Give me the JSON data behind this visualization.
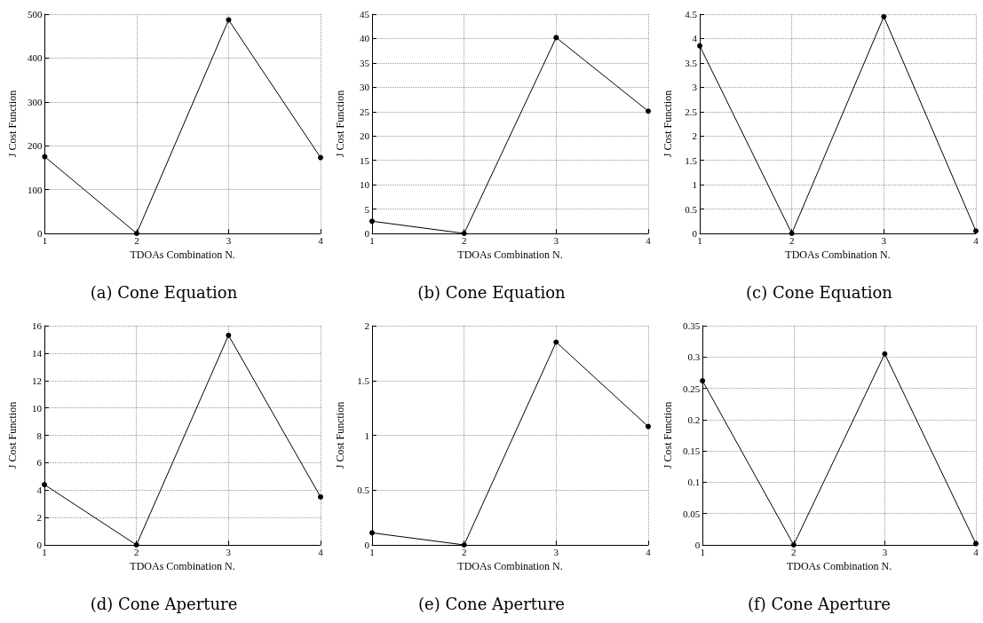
{
  "chart_data": [
    {
      "type": "line",
      "title": "(a) Cone Equation",
      "xlabel": "TDOAs Combination N.",
      "ylabel": "J Cost Function",
      "x": [
        1,
        2,
        3,
        4
      ],
      "series": [
        {
          "color": "#000000",
          "values": [
            175,
            0,
            487,
            173
          ]
        }
      ],
      "xlim": [
        1,
        4
      ],
      "xticks": [
        1,
        2,
        3,
        4
      ],
      "ylim": [
        0,
        500
      ],
      "yticks": [
        0,
        100,
        200,
        300,
        400,
        500
      ],
      "grid": true,
      "marker": "circle",
      "line_style": "solid"
    },
    {
      "type": "line",
      "title": "(b) Cone Equation",
      "xlabel": "TDOAs Combination N.",
      "ylabel": "J Cost Function",
      "x": [
        1,
        2,
        3,
        4
      ],
      "series": [
        {
          "color": "#000000",
          "values": [
            2.5,
            0,
            40.2,
            25.1
          ]
        }
      ],
      "xlim": [
        1,
        4
      ],
      "xticks": [
        1,
        2,
        3,
        4
      ],
      "ylim": [
        0,
        45
      ],
      "yticks": [
        0,
        5,
        10,
        15,
        20,
        25,
        30,
        35,
        40,
        45
      ],
      "grid": true,
      "marker": "circle",
      "line_style": "solid"
    },
    {
      "type": "line",
      "title": "(c) Cone Equation",
      "xlabel": "TDOAs Combination N.",
      "ylabel": "J Cost Function",
      "x": [
        1,
        2,
        3,
        4
      ],
      "series": [
        {
          "color": "#000000",
          "values": [
            3.85,
            0,
            4.45,
            0.05
          ]
        }
      ],
      "xlim": [
        1,
        4
      ],
      "xticks": [
        1,
        2,
        3,
        4
      ],
      "ylim": [
        0,
        4.5
      ],
      "yticks": [
        0,
        0.5,
        1,
        1.5,
        2,
        2.5,
        3,
        3.5,
        4,
        4.5
      ],
      "grid": true,
      "marker": "circle",
      "line_style": "solid"
    },
    {
      "type": "line",
      "title": "(d) Cone Aperture",
      "xlabel": "TDOAs Combination N.",
      "ylabel": "J Cost Function",
      "x": [
        1,
        2,
        3,
        4
      ],
      "series": [
        {
          "color": "#000000",
          "values": [
            4.4,
            0,
            15.3,
            3.5
          ]
        }
      ],
      "xlim": [
        1,
        4
      ],
      "xticks": [
        1,
        2,
        3,
        4
      ],
      "ylim": [
        0,
        16
      ],
      "yticks": [
        0,
        2,
        4,
        6,
        8,
        10,
        12,
        14,
        16
      ],
      "grid": true,
      "marker": "circle",
      "line_style": "solid"
    },
    {
      "type": "line",
      "title": "(e) Cone Aperture",
      "xlabel": "TDOAs Combination N.",
      "ylabel": "J Cost Function",
      "x": [
        1,
        2,
        3,
        4
      ],
      "series": [
        {
          "color": "#000000",
          "values": [
            0.11,
            0,
            1.85,
            1.08
          ]
        }
      ],
      "xlim": [
        1,
        4
      ],
      "xticks": [
        1,
        2,
        3,
        4
      ],
      "ylim": [
        0,
        2
      ],
      "yticks": [
        0,
        0.5,
        1,
        1.5,
        2
      ],
      "grid": true,
      "marker": "circle",
      "line_style": "solid"
    },
    {
      "type": "line",
      "title": "(f) Cone Aperture",
      "xlabel": "TDOAs Combination N.",
      "ylabel": "J Cost Function",
      "x": [
        1,
        2,
        3,
        4
      ],
      "series": [
        {
          "color": "#000000",
          "values": [
            0.262,
            0,
            0.305,
            0.002
          ]
        }
      ],
      "xlim": [
        1,
        4
      ],
      "xticks": [
        1,
        2,
        3,
        4
      ],
      "ylim": [
        0,
        0.35
      ],
      "yticks": [
        0,
        0.05,
        0.1,
        0.15,
        0.2,
        0.25,
        0.3,
        0.35
      ],
      "grid": true,
      "marker": "circle",
      "line_style": "solid"
    }
  ]
}
